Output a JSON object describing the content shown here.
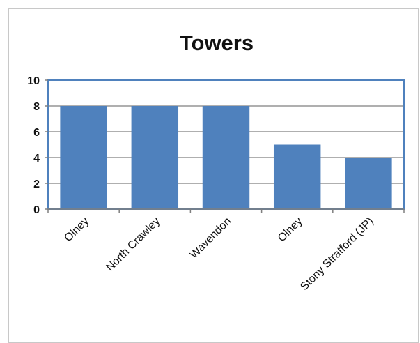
{
  "chart_data": {
    "type": "bar",
    "title": "Towers",
    "xlabel": "",
    "ylabel": "",
    "categories": [
      "Olney",
      "North Crawley",
      "Wavendon",
      "Olney",
      "Stony Stratford (JP)"
    ],
    "values": [
      8,
      8,
      8,
      5,
      4
    ],
    "ylim": [
      0,
      10
    ],
    "yticks": [
      "0",
      "2",
      "4",
      "6",
      "8",
      "10"
    ],
    "grid": true,
    "legend": "none",
    "colors": {
      "bar": "#4f81bd",
      "plot_border": "#4f81bd",
      "grid": "#7f7f7f",
      "axis": "#7f7f7f",
      "text": "#111111"
    }
  }
}
